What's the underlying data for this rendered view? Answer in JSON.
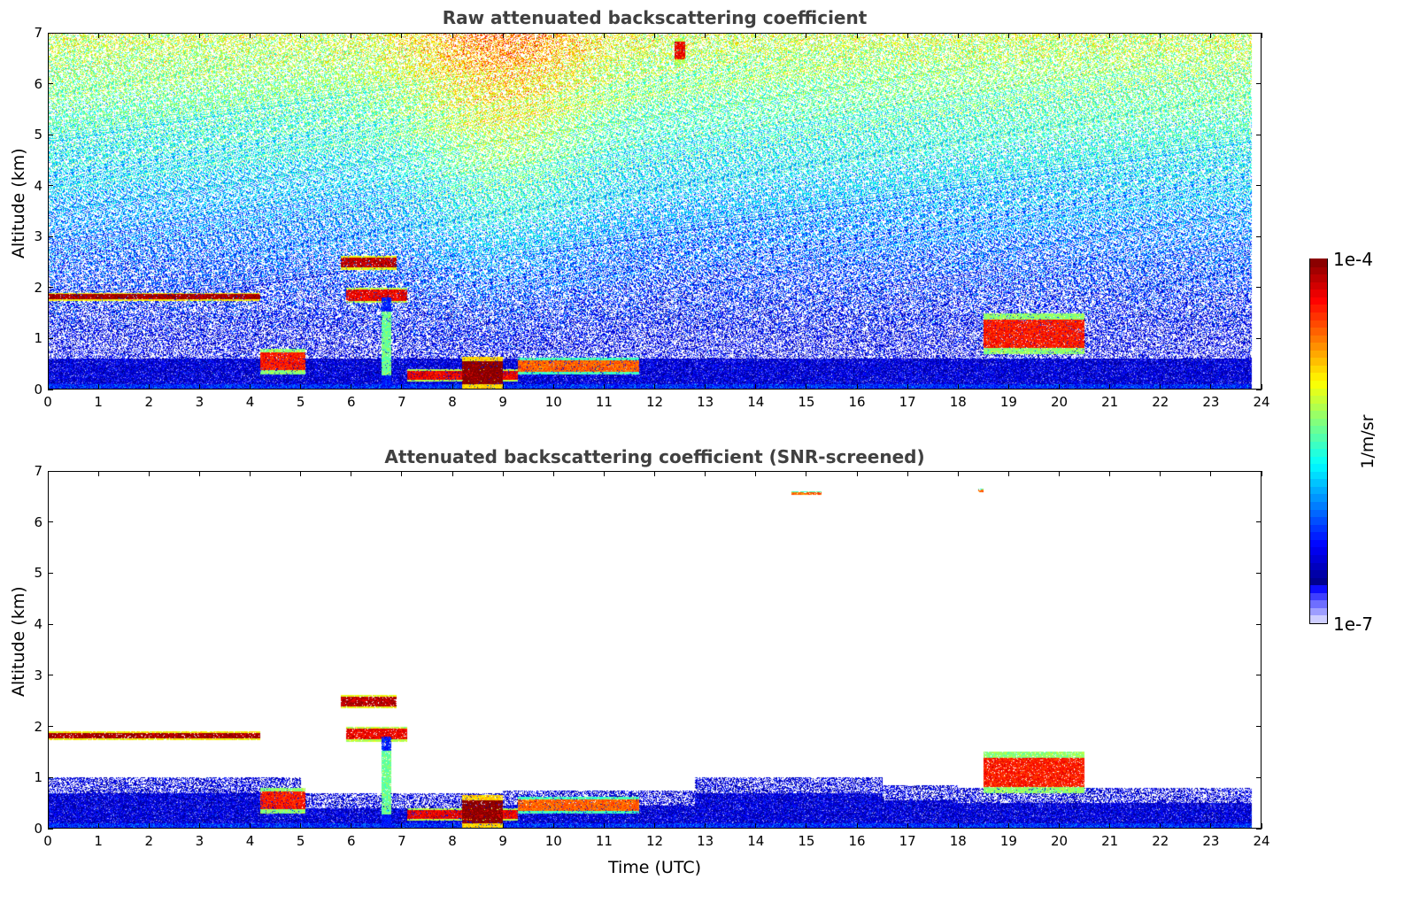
{
  "chart_data": [
    {
      "type": "heatmap",
      "id": "raw",
      "title": "Raw attenuated backscattering coefficient",
      "xlabel": "",
      "ylabel": "Altitude (km)",
      "xlim": [
        0,
        24
      ],
      "ylim": [
        0,
        7
      ],
      "x_ticks": [
        "0",
        "1",
        "2",
        "3",
        "4",
        "5",
        "6",
        "7",
        "8",
        "9",
        "10",
        "11",
        "12",
        "13",
        "14",
        "15",
        "16",
        "17",
        "18",
        "19",
        "20",
        "21",
        "22",
        "23",
        "24"
      ],
      "y_ticks": [
        "0",
        "1",
        "2",
        "3",
        "4",
        "5",
        "6",
        "7"
      ],
      "data_end_hour": 23.8,
      "screened": false,
      "features_log10": [
        {
          "name": "elevated cloud layer",
          "t": [
            0,
            4.2
          ],
          "z": [
            1.74,
            1.9
          ],
          "v": -4.1
        },
        {
          "name": "upper cloud",
          "t": [
            5.8,
            6.9
          ],
          "z": [
            2.35,
            2.62
          ],
          "v": -4.15
        },
        {
          "name": "mid cloud",
          "t": [
            5.9,
            7.1
          ],
          "z": [
            1.7,
            2.0
          ],
          "v": -4.3
        },
        {
          "name": "falling plume",
          "t": [
            6.6,
            6.8
          ],
          "z": [
            0,
            1.8
          ],
          "v": -5.4
        },
        {
          "name": "low cloud A",
          "t": [
            4.2,
            5.1
          ],
          "z": [
            0.3,
            0.8
          ],
          "v": -4.4
        },
        {
          "name": "low cloud B",
          "t": [
            7.1,
            9.3
          ],
          "z": [
            0.15,
            0.4
          ],
          "v": -4.3
        },
        {
          "name": "dense low cloud",
          "t": [
            8.2,
            9.0
          ],
          "z": [
            0,
            0.65
          ],
          "v": -4.0
        },
        {
          "name": "low cloud C",
          "t": [
            9.3,
            11.7
          ],
          "z": [
            0.3,
            0.62
          ],
          "v": -4.6
        },
        {
          "name": "low cloud D",
          "t": [
            18.5,
            20.5
          ],
          "z": [
            0.7,
            1.5
          ],
          "v": -4.4
        },
        {
          "name": "cirrus streak",
          "t": [
            12.4,
            12.6
          ],
          "z": [
            6.4,
            6.9
          ],
          "v": -4.3
        }
      ]
    },
    {
      "type": "heatmap",
      "id": "screened",
      "title": "Attenuated backscattering coefficient (SNR-screened)",
      "xlabel": "Time (UTC)",
      "ylabel": "Altitude (km)",
      "xlim": [
        0,
        24
      ],
      "ylim": [
        0,
        7
      ],
      "x_ticks": [
        "0",
        "1",
        "2",
        "3",
        "4",
        "5",
        "6",
        "7",
        "8",
        "9",
        "10",
        "11",
        "12",
        "13",
        "14",
        "15",
        "16",
        "17",
        "18",
        "19",
        "20",
        "21",
        "22",
        "23",
        "24"
      ],
      "y_ticks": [
        "0",
        "1",
        "2",
        "3",
        "4",
        "5",
        "6",
        "7"
      ],
      "data_end_hour": 23.8,
      "screened": true,
      "features_log10": [
        {
          "name": "elevated cloud layer",
          "t": [
            0,
            4.2
          ],
          "z": [
            1.74,
            1.9
          ],
          "v": -4.1
        },
        {
          "name": "upper cloud",
          "t": [
            5.8,
            6.9
          ],
          "z": [
            2.35,
            2.62
          ],
          "v": -4.15
        },
        {
          "name": "mid cloud",
          "t": [
            5.9,
            7.1
          ],
          "z": [
            1.7,
            2.0
          ],
          "v": -4.3
        },
        {
          "name": "falling plume",
          "t": [
            6.6,
            6.8
          ],
          "z": [
            0,
            1.8
          ],
          "v": -5.4
        },
        {
          "name": "low cloud A",
          "t": [
            4.2,
            5.1
          ],
          "z": [
            0.3,
            0.8
          ],
          "v": -4.4
        },
        {
          "name": "low cloud B",
          "t": [
            7.1,
            9.3
          ],
          "z": [
            0.15,
            0.4
          ],
          "v": -4.3
        },
        {
          "name": "dense low cloud",
          "t": [
            8.2,
            9.0
          ],
          "z": [
            0,
            0.65
          ],
          "v": -4.0
        },
        {
          "name": "low cloud C",
          "t": [
            9.3,
            11.7
          ],
          "z": [
            0.3,
            0.62
          ],
          "v": -4.6
        },
        {
          "name": "low cloud D",
          "t": [
            18.5,
            20.5
          ],
          "z": [
            0.7,
            1.5
          ],
          "v": -4.4
        },
        {
          "name": "high cirrus 1",
          "t": [
            14.7,
            15.3
          ],
          "z": [
            6.53,
            6.6
          ],
          "v": -4.6
        },
        {
          "name": "high cirrus 2",
          "t": [
            18.4,
            18.5
          ],
          "z": [
            6.58,
            6.65
          ],
          "v": -4.6
        }
      ]
    }
  ],
  "colorbar": {
    "label": "1/m/sr",
    "max_label": "1e-4",
    "min_label": "1e-7",
    "range_log10": [
      -7,
      -4
    ],
    "colormap": "jet"
  }
}
